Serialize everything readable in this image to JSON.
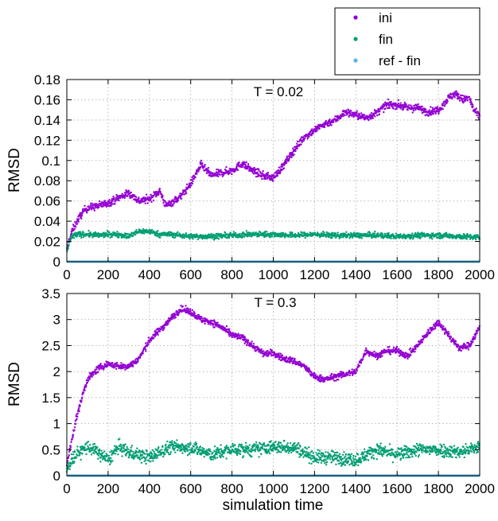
{
  "chart_data": [
    {
      "type": "scatter",
      "annotation": "T = 0.02",
      "ylabel": "RMSD",
      "xlabel": "",
      "xlim": [
        0,
        2000
      ],
      "ylim": [
        0,
        0.18
      ],
      "x_ticks": [
        "0",
        "200",
        "400",
        "600",
        "800",
        "1000",
        "1200",
        "1400",
        "1600",
        "1800",
        "2000"
      ],
      "y_ticks": [
        "0",
        "0.02",
        "0.04",
        "0.06",
        "0.08",
        "0.1",
        "0.12",
        "0.14",
        "0.16",
        "0.18"
      ],
      "grid": true,
      "legend_position": "top-right-outside",
      "series": [
        {
          "name": "ini",
          "color": "#9400d3",
          "noise": 0.0035,
          "x": [
            0,
            10,
            25,
            50,
            80,
            100,
            150,
            200,
            250,
            300,
            350,
            400,
            450,
            480,
            550,
            600,
            650,
            700,
            750,
            800,
            850,
            900,
            950,
            1000,
            1050,
            1100,
            1150,
            1200,
            1250,
            1300,
            1350,
            1400,
            1450,
            1500,
            1550,
            1600,
            1650,
            1700,
            1750,
            1800,
            1850,
            1880,
            1920,
            1950,
            1970,
            2000
          ],
          "y": [
            0.01,
            0.02,
            0.03,
            0.04,
            0.05,
            0.053,
            0.055,
            0.058,
            0.063,
            0.068,
            0.06,
            0.062,
            0.07,
            0.055,
            0.064,
            0.077,
            0.096,
            0.085,
            0.088,
            0.09,
            0.097,
            0.09,
            0.085,
            0.083,
            0.095,
            0.11,
            0.123,
            0.13,
            0.136,
            0.14,
            0.148,
            0.145,
            0.142,
            0.147,
            0.155,
            0.155,
            0.152,
            0.152,
            0.148,
            0.15,
            0.162,
            0.166,
            0.16,
            0.162,
            0.15,
            0.143
          ]
        },
        {
          "name": "fin",
          "color": "#009e73",
          "noise": 0.0025,
          "x": [
            0,
            10,
            25,
            50,
            100,
            150,
            200,
            250,
            300,
            350,
            400,
            450,
            500,
            600,
            700,
            800,
            900,
            1000,
            1100,
            1200,
            1300,
            1400,
            1500,
            1600,
            1700,
            1800,
            1900,
            2000
          ],
          "y": [
            0.01,
            0.018,
            0.025,
            0.027,
            0.027,
            0.026,
            0.027,
            0.027,
            0.025,
            0.03,
            0.03,
            0.027,
            0.027,
            0.025,
            0.025,
            0.026,
            0.027,
            0.027,
            0.026,
            0.027,
            0.026,
            0.026,
            0.026,
            0.025,
            0.026,
            0.026,
            0.025,
            0.024
          ]
        },
        {
          "name": "ref - fin",
          "color": "#56b4e9",
          "x": [
            0,
            2000
          ],
          "y": [
            0,
            0
          ]
        }
      ]
    },
    {
      "type": "scatter",
      "annotation": "T = 0.3",
      "ylabel": "RMSD",
      "xlabel": "simulation time",
      "xlim": [
        0,
        2000
      ],
      "ylim": [
        0,
        3.5
      ],
      "x_ticks": [
        "0",
        "200",
        "400",
        "600",
        "800",
        "1000",
        "1200",
        "1400",
        "1600",
        "1800",
        "2000"
      ],
      "y_ticks": [
        "0",
        "0.5",
        "1",
        "1.5",
        "2",
        "2.5",
        "3",
        "3.5"
      ],
      "grid": true,
      "series": [
        {
          "name": "ini",
          "color": "#9400d3",
          "noise": 0.06,
          "x": [
            0,
            10,
            20,
            40,
            60,
            80,
            100,
            150,
            200,
            250,
            300,
            350,
            400,
            450,
            500,
            550,
            600,
            650,
            700,
            750,
            800,
            850,
            900,
            950,
            1000,
            1050,
            1100,
            1150,
            1200,
            1250,
            1300,
            1350,
            1400,
            1450,
            1500,
            1550,
            1600,
            1650,
            1700,
            1750,
            1800,
            1850,
            1900,
            1950,
            2000
          ],
          "y": [
            0.2,
            0.4,
            0.6,
            1.0,
            1.3,
            1.6,
            1.85,
            2.05,
            2.15,
            2.1,
            2.1,
            2.25,
            2.6,
            2.8,
            3.0,
            3.2,
            3.15,
            3.0,
            2.95,
            2.85,
            2.7,
            2.65,
            2.5,
            2.35,
            2.35,
            2.25,
            2.2,
            2.1,
            1.9,
            1.85,
            1.9,
            1.95,
            2.0,
            2.4,
            2.3,
            2.4,
            2.4,
            2.3,
            2.5,
            2.75,
            2.95,
            2.7,
            2.45,
            2.5,
            2.85
          ]
        },
        {
          "name": "fin",
          "color": "#009e73",
          "noise": 0.12,
          "x": [
            0,
            10,
            30,
            60,
            100,
            150,
            200,
            250,
            300,
            400,
            500,
            600,
            700,
            800,
            900,
            1000,
            1100,
            1200,
            1300,
            1400,
            1500,
            1600,
            1700,
            1800,
            1900,
            2000
          ],
          "y": [
            0.1,
            0.2,
            0.35,
            0.45,
            0.55,
            0.45,
            0.3,
            0.55,
            0.45,
            0.35,
            0.55,
            0.55,
            0.4,
            0.5,
            0.5,
            0.55,
            0.55,
            0.35,
            0.35,
            0.3,
            0.5,
            0.4,
            0.5,
            0.5,
            0.45,
            0.55
          ]
        },
        {
          "name": "ref - fin",
          "color": "#56b4e9",
          "x": [
            0,
            2000
          ],
          "y": [
            0,
            0
          ]
        }
      ]
    }
  ]
}
